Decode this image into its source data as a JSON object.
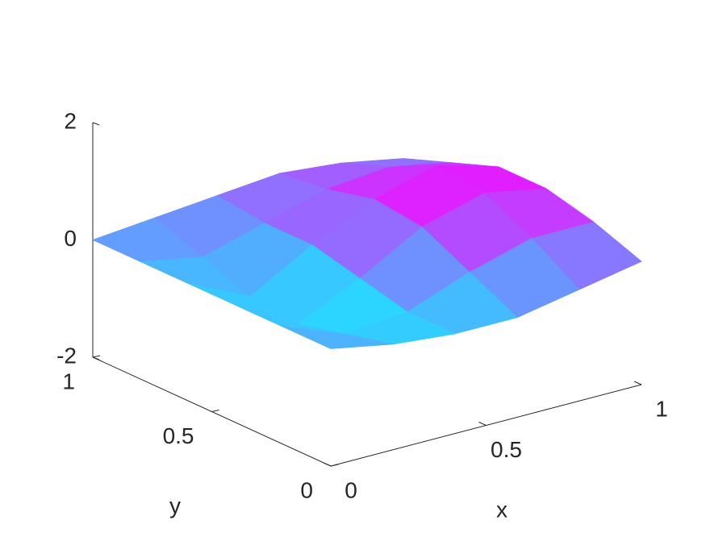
{
  "chart_data": {
    "type": "surface",
    "x": [
      0,
      0.2,
      0.4,
      0.6,
      0.8,
      1
    ],
    "y": [
      0,
      0.2,
      0.4,
      0.6,
      0.8,
      1
    ],
    "z": [
      [
        0,
        -0.2,
        -0.3,
        -0.3,
        -0.1,
        0.1
      ],
      [
        0,
        -0.4,
        -0.3,
        0.1,
        0.4,
        0.4
      ],
      [
        0,
        -0.6,
        -0.1,
        0.5,
        0.8,
        0.6
      ],
      [
        0,
        -0.5,
        0.1,
        0.6,
        0.9,
        0.6
      ],
      [
        0,
        -0.2,
        0.1,
        0.4,
        0.5,
        0.3
      ],
      [
        0,
        0.1,
        0.2,
        0.3,
        0.2,
        0
      ]
    ],
    "colormap": "cool",
    "xlim": [
      0,
      1
    ],
    "ylim": [
      0,
      1
    ],
    "zlim": [
      -2,
      2
    ],
    "xticks": [
      0,
      0.5,
      1
    ],
    "yticks": [
      0,
      0.5,
      1
    ],
    "zticks": [
      -2,
      0,
      2
    ],
    "xlabel": "x",
    "ylabel": "y"
  }
}
